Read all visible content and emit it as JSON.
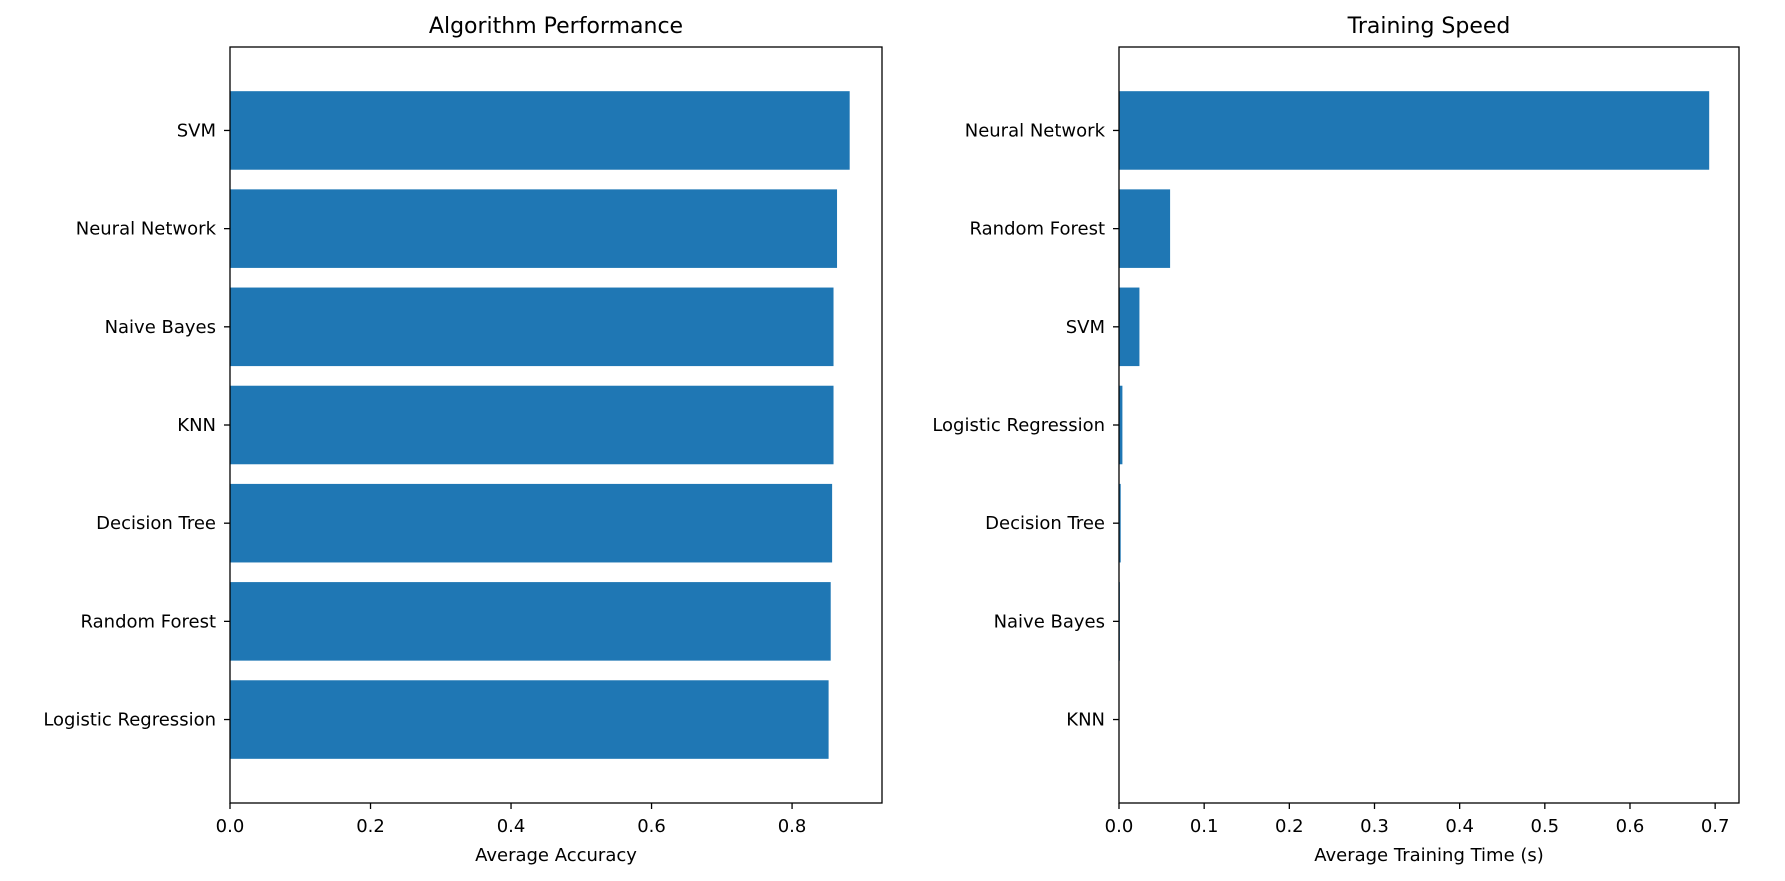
{
  "colors": {
    "bar": "#1f77b4",
    "axis": "#000000",
    "background": "#ffffff"
  },
  "chart_data": [
    {
      "type": "bar",
      "orientation": "horizontal",
      "title": "Algorithm Performance",
      "xlabel": "Average Accuracy",
      "ylabel": "",
      "categories": [
        "Logistic Regression",
        "Random Forest",
        "Decision Tree",
        "KNN",
        "Naive Bayes",
        "Neural Network",
        "SVM"
      ],
      "values": [
        0.852,
        0.855,
        0.857,
        0.859,
        0.859,
        0.864,
        0.882
      ],
      "xlim": [
        0,
        0.928
      ],
      "xticks": [
        0,
        0.2,
        0.4,
        0.6,
        0.8
      ],
      "xtick_labels": [
        "0.0",
        "0.2",
        "0.4",
        "0.6",
        "0.8"
      ],
      "grid": false,
      "legend": "none"
    },
    {
      "type": "bar",
      "orientation": "horizontal",
      "title": "Training Speed",
      "xlabel": "Average Training Time (s)",
      "ylabel": "",
      "categories": [
        "KNN",
        "Naive Bayes",
        "Decision Tree",
        "Logistic Regression",
        "SVM",
        "Random Forest",
        "Neural Network"
      ],
      "values": [
        0.0005,
        0.001,
        0.002,
        0.004,
        0.024,
        0.06,
        0.693
      ],
      "xlim": [
        0,
        0.728
      ],
      "xticks": [
        0,
        0.1,
        0.2,
        0.3,
        0.4,
        0.5,
        0.6,
        0.7
      ],
      "xtick_labels": [
        "0.0",
        "0.1",
        "0.2",
        "0.3",
        "0.4",
        "0.5",
        "0.6",
        "0.7"
      ],
      "grid": false,
      "legend": "none"
    }
  ]
}
